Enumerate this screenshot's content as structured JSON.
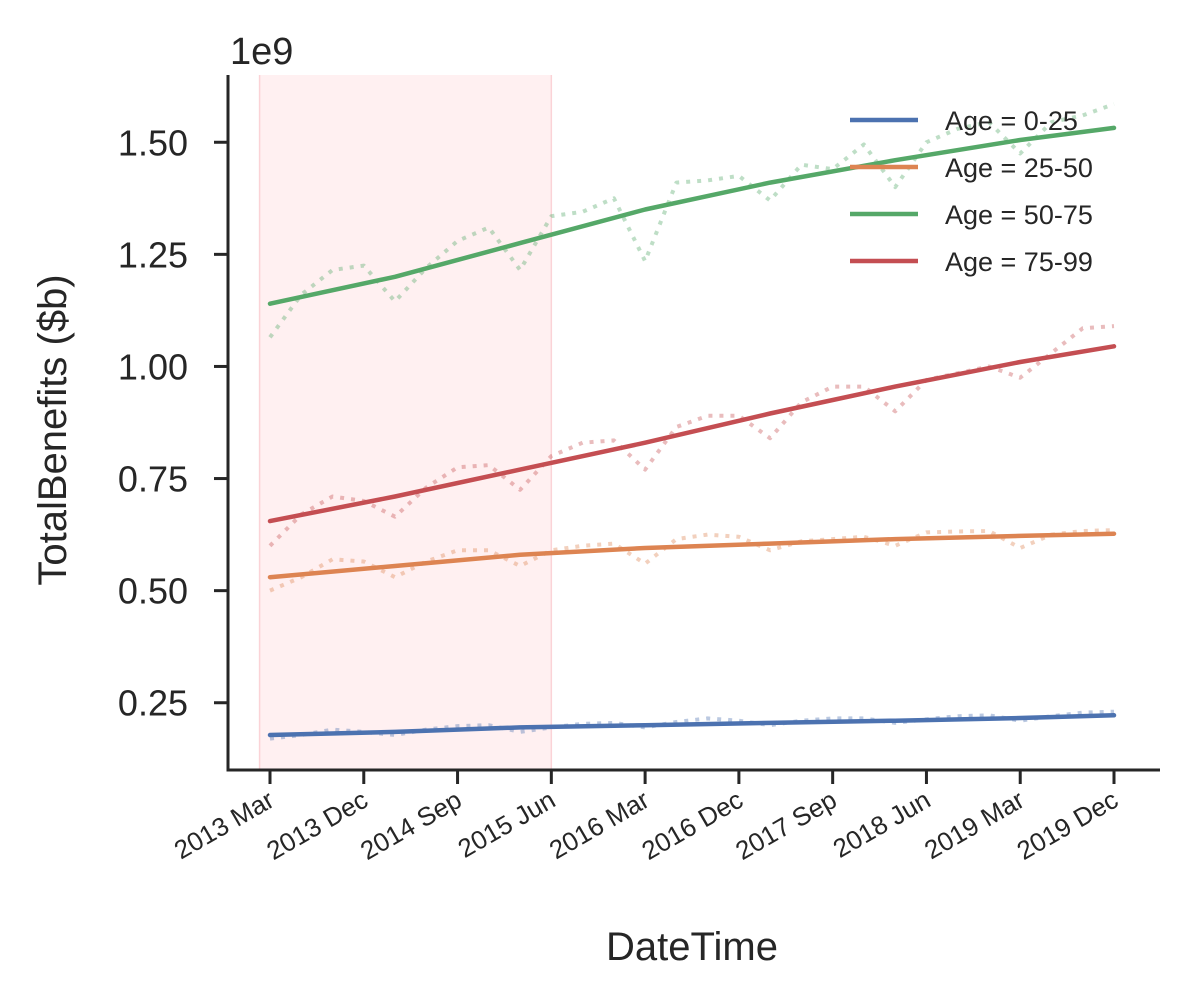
{
  "chart_data": {
    "type": "line",
    "xlabel": "DateTime",
    "ylabel": "TotalBenefits ($b)",
    "y_offset_label": "1e9",
    "ylim": [
      0.1,
      1.65
    ],
    "yticks": [
      0.25,
      0.5,
      0.75,
      1.0,
      1.25,
      1.5
    ],
    "ytick_labels": [
      "0.25",
      "0.50",
      "0.75",
      "1.00",
      "1.25",
      "1.50"
    ],
    "xlim": [
      "2013-01",
      "2020-01"
    ],
    "xticks": [
      "2013-03",
      "2013-12",
      "2014-09",
      "2015-06",
      "2016-03",
      "2016-12",
      "2017-09",
      "2018-06",
      "2019-03",
      "2019-12"
    ],
    "xtick_labels": [
      "2013 Mar",
      "2013 Dec",
      "2014 Sep",
      "2015 Jun",
      "2016 Mar",
      "2016 Dec",
      "2017 Sep",
      "2018 Jun",
      "2019 Mar",
      "2019 Dec"
    ],
    "shaded_region": {
      "start": "2013-02",
      "end": "2015-06",
      "color": "#fff0f1"
    },
    "legend_position": "top-right",
    "grid": false,
    "series": [
      {
        "name": "Age = 0-25",
        "color": "#4c72b0",
        "trend": [
          [
            "2013-03",
            0.178
          ],
          [
            "2014-03",
            0.185
          ],
          [
            "2015-03",
            0.195
          ],
          [
            "2016-03",
            0.2
          ],
          [
            "2017-03",
            0.205
          ],
          [
            "2018-03",
            0.21
          ],
          [
            "2019-03",
            0.216
          ],
          [
            "2019-12",
            0.222
          ]
        ],
        "raw": [
          [
            "2013-03",
            0.17
          ],
          [
            "2013-06",
            0.178
          ],
          [
            "2013-09",
            0.19
          ],
          [
            "2013-12",
            0.185
          ],
          [
            "2014-03",
            0.178
          ],
          [
            "2014-06",
            0.19
          ],
          [
            "2014-09",
            0.198
          ],
          [
            "2014-12",
            0.2
          ],
          [
            "2015-03",
            0.185
          ],
          [
            "2015-06",
            0.195
          ],
          [
            "2015-09",
            0.203
          ],
          [
            "2015-12",
            0.205
          ],
          [
            "2016-03",
            0.195
          ],
          [
            "2016-06",
            0.207
          ],
          [
            "2016-09",
            0.215
          ],
          [
            "2016-12",
            0.21
          ],
          [
            "2017-03",
            0.2
          ],
          [
            "2017-06",
            0.21
          ],
          [
            "2017-09",
            0.215
          ],
          [
            "2017-12",
            0.215
          ],
          [
            "2018-03",
            0.205
          ],
          [
            "2018-06",
            0.213
          ],
          [
            "2018-09",
            0.22
          ],
          [
            "2018-12",
            0.222
          ],
          [
            "2019-03",
            0.21
          ],
          [
            "2019-06",
            0.22
          ],
          [
            "2019-09",
            0.228
          ],
          [
            "2019-12",
            0.23
          ]
        ]
      },
      {
        "name": "Age = 25-50",
        "color": "#dd8452",
        "trend": [
          [
            "2013-03",
            0.53
          ],
          [
            "2014-03",
            0.555
          ],
          [
            "2015-03",
            0.58
          ],
          [
            "2016-03",
            0.595
          ],
          [
            "2017-03",
            0.605
          ],
          [
            "2018-03",
            0.615
          ],
          [
            "2019-03",
            0.622
          ],
          [
            "2019-12",
            0.627
          ]
        ],
        "raw": [
          [
            "2013-03",
            0.5
          ],
          [
            "2013-06",
            0.53
          ],
          [
            "2013-09",
            0.57
          ],
          [
            "2013-12",
            0.565
          ],
          [
            "2014-03",
            0.53
          ],
          [
            "2014-06",
            0.565
          ],
          [
            "2014-09",
            0.59
          ],
          [
            "2014-12",
            0.59
          ],
          [
            "2015-03",
            0.555
          ],
          [
            "2015-06",
            0.59
          ],
          [
            "2015-09",
            0.6
          ],
          [
            "2015-12",
            0.605
          ],
          [
            "2016-03",
            0.56
          ],
          [
            "2016-06",
            0.615
          ],
          [
            "2016-09",
            0.625
          ],
          [
            "2016-12",
            0.62
          ],
          [
            "2017-03",
            0.59
          ],
          [
            "2017-06",
            0.61
          ],
          [
            "2017-09",
            0.615
          ],
          [
            "2017-12",
            0.62
          ],
          [
            "2018-03",
            0.6
          ],
          [
            "2018-06",
            0.63
          ],
          [
            "2018-09",
            0.632
          ],
          [
            "2018-12",
            0.633
          ],
          [
            "2019-03",
            0.595
          ],
          [
            "2019-06",
            0.625
          ],
          [
            "2019-09",
            0.633
          ],
          [
            "2019-12",
            0.635
          ]
        ]
      },
      {
        "name": "Age = 50-75",
        "color": "#55a868",
        "trend": [
          [
            "2013-03",
            1.14
          ],
          [
            "2014-03",
            1.2
          ],
          [
            "2015-03",
            1.275
          ],
          [
            "2016-03",
            1.35
          ],
          [
            "2017-03",
            1.41
          ],
          [
            "2018-03",
            1.46
          ],
          [
            "2019-03",
            1.505
          ],
          [
            "2019-12",
            1.532
          ]
        ],
        "raw": [
          [
            "2013-03",
            1.065
          ],
          [
            "2013-06",
            1.16
          ],
          [
            "2013-09",
            1.215
          ],
          [
            "2013-12",
            1.225
          ],
          [
            "2014-03",
            1.145
          ],
          [
            "2014-06",
            1.22
          ],
          [
            "2014-09",
            1.28
          ],
          [
            "2014-12",
            1.31
          ],
          [
            "2015-03",
            1.215
          ],
          [
            "2015-06",
            1.335
          ],
          [
            "2015-09",
            1.345
          ],
          [
            "2015-12",
            1.375
          ],
          [
            "2016-03",
            1.235
          ],
          [
            "2016-06",
            1.41
          ],
          [
            "2016-09",
            1.415
          ],
          [
            "2016-12",
            1.425
          ],
          [
            "2017-03",
            1.37
          ],
          [
            "2017-06",
            1.45
          ],
          [
            "2017-09",
            1.44
          ],
          [
            "2017-12",
            1.495
          ],
          [
            "2018-03",
            1.4
          ],
          [
            "2018-06",
            1.5
          ],
          [
            "2018-09",
            1.53
          ],
          [
            "2018-12",
            1.545
          ],
          [
            "2019-03",
            1.475
          ],
          [
            "2019-06",
            1.545
          ],
          [
            "2019-09",
            1.56
          ],
          [
            "2019-12",
            1.585
          ]
        ]
      },
      {
        "name": "Age = 75-99",
        "color": "#c44e52",
        "trend": [
          [
            "2013-03",
            0.655
          ],
          [
            "2014-03",
            0.71
          ],
          [
            "2015-03",
            0.77
          ],
          [
            "2016-03",
            0.83
          ],
          [
            "2017-03",
            0.895
          ],
          [
            "2018-03",
            0.955
          ],
          [
            "2019-03",
            1.01
          ],
          [
            "2019-12",
            1.045
          ]
        ],
        "raw": [
          [
            "2013-03",
            0.6
          ],
          [
            "2013-06",
            0.67
          ],
          [
            "2013-09",
            0.71
          ],
          [
            "2013-12",
            0.7
          ],
          [
            "2014-03",
            0.665
          ],
          [
            "2014-06",
            0.73
          ],
          [
            "2014-09",
            0.775
          ],
          [
            "2014-12",
            0.78
          ],
          [
            "2015-03",
            0.725
          ],
          [
            "2015-06",
            0.8
          ],
          [
            "2015-09",
            0.83
          ],
          [
            "2015-12",
            0.835
          ],
          [
            "2016-03",
            0.77
          ],
          [
            "2016-06",
            0.865
          ],
          [
            "2016-09",
            0.89
          ],
          [
            "2016-12",
            0.89
          ],
          [
            "2017-03",
            0.84
          ],
          [
            "2017-06",
            0.92
          ],
          [
            "2017-09",
            0.955
          ],
          [
            "2017-12",
            0.955
          ],
          [
            "2018-03",
            0.9
          ],
          [
            "2018-06",
            0.97
          ],
          [
            "2018-09",
            0.985
          ],
          [
            "2018-12",
            1.0
          ],
          [
            "2019-03",
            0.975
          ],
          [
            "2019-06",
            1.03
          ],
          [
            "2019-09",
            1.085
          ],
          [
            "2019-12",
            1.09
          ]
        ]
      }
    ]
  }
}
